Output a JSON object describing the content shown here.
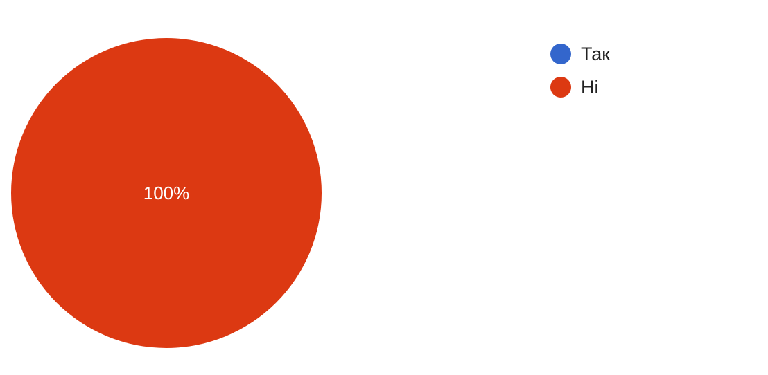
{
  "chart_data": {
    "type": "pie",
    "title": "",
    "categories": [
      "Так",
      "Ні"
    ],
    "values": [
      0,
      100
    ],
    "slice_labels": [
      "",
      "100%"
    ],
    "colors": [
      "#3366cc",
      "#dc3912"
    ],
    "legend_position": "top-right"
  }
}
